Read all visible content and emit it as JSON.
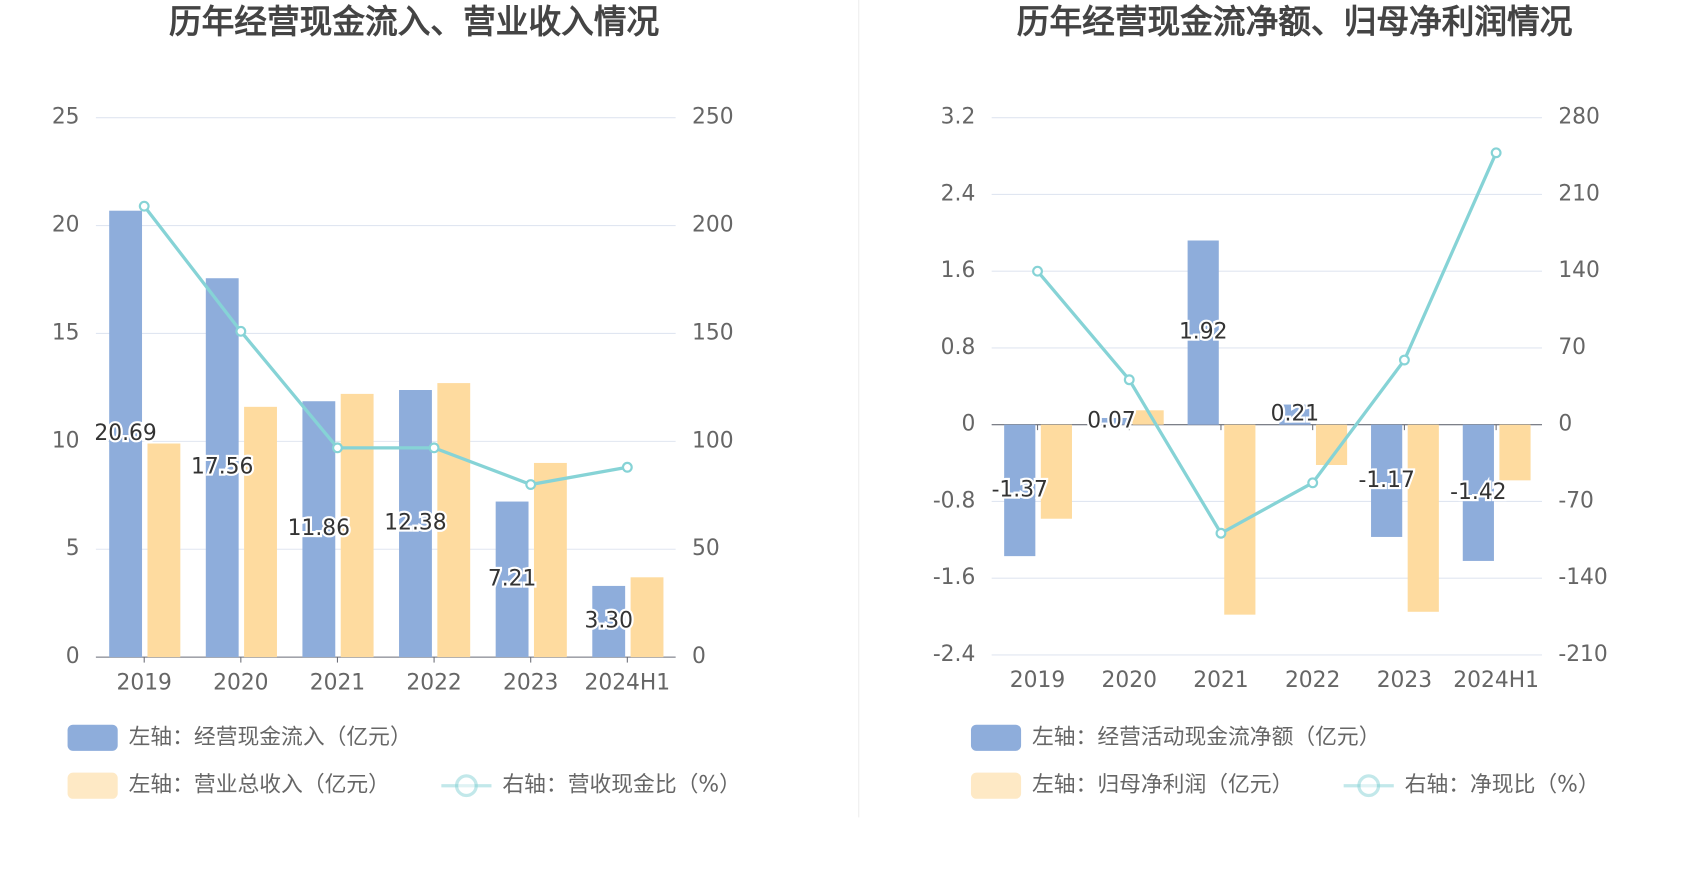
{
  "chart_data": [
    {
      "type": "bar",
      "title": "历年经营现金流入、营业收入情况",
      "categories": [
        "2019",
        "2020",
        "2021",
        "2022",
        "2023",
        "2024H1"
      ],
      "series": [
        {
          "name": "左轴：经营现金流入（亿元）",
          "color": "#8eaddb",
          "values": [
            20.69,
            17.56,
            11.86,
            12.38,
            7.21,
            3.3
          ],
          "value_labels": [
            "20.69",
            "17.56",
            "11.86",
            "12.38",
            "7.21",
            "3.30"
          ]
        },
        {
          "name": "左轴：营业总收入（亿元）",
          "color": "#fedb9f",
          "values": [
            9.9,
            11.6,
            12.2,
            12.7,
            9.0,
            3.7
          ]
        },
        {
          "name": "右轴：营收现金比（%）",
          "color": "#86d3d6",
          "type": "line",
          "axis": "y2",
          "values": [
            209,
            151,
            97,
            97,
            80,
            88
          ]
        }
      ],
      "ylim": [
        0,
        25
      ],
      "yticks": [
        0,
        5,
        10,
        15,
        20,
        25
      ],
      "y2lim": [
        0,
        250
      ],
      "y2ticks": [
        0,
        50,
        100,
        150,
        200,
        250
      ],
      "grid": true,
      "legend": "bottom"
    },
    {
      "type": "bar",
      "title": "历年经营现金流净额、归母净利润情况",
      "categories": [
        "2019",
        "2020",
        "2021",
        "2022",
        "2023",
        "2024H1"
      ],
      "series": [
        {
          "name": "左轴：经营活动现金流净额（亿元）",
          "color": "#8eaddb",
          "values": [
            -1.37,
            0.07,
            1.92,
            0.21,
            -1.17,
            -1.42
          ]
        },
        {
          "name": "左轴：归母净利润（亿元）",
          "color": "#fedb9f",
          "values": [
            -0.98,
            0.15,
            -1.98,
            -0.42,
            -1.95,
            -0.58
          ]
        },
        {
          "name": "右轴：净现比（%）",
          "color": "#86d3d6",
          "type": "line",
          "axis": "y2",
          "values": [
            140,
            41,
            -99,
            -53,
            59,
            248
          ]
        }
      ],
      "ylim": [
        -2.4,
        3.2
      ],
      "yticks": [
        -2.4,
        -1.6,
        -0.8,
        0,
        0.8,
        1.6,
        2.4,
        3.2
      ],
      "y2lim": [
        -210,
        280
      ],
      "y2ticks": [
        -210,
        -140,
        -70,
        0,
        70,
        140,
        210,
        280
      ],
      "grid": true,
      "legend": "bottom"
    }
  ]
}
